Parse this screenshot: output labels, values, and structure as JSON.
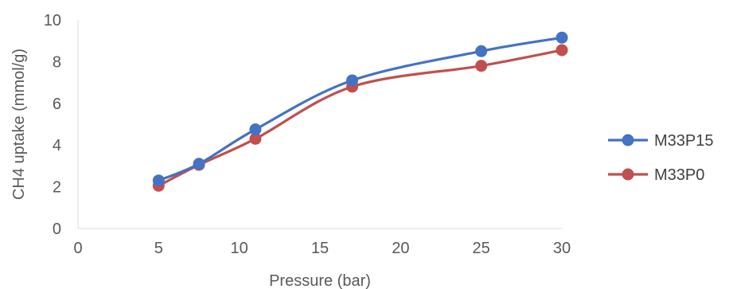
{
  "chart_data": {
    "type": "line",
    "title": "",
    "xlabel": "Pressure (bar)",
    "ylabel": "CH4 uptake (mmol/g)",
    "xlim": [
      0,
      30
    ],
    "ylim": [
      0,
      10
    ],
    "xticks": [
      0,
      5,
      10,
      15,
      20,
      25,
      30
    ],
    "yticks": [
      0,
      2,
      4,
      6,
      8,
      10
    ],
    "grid": false,
    "smooth": true,
    "legend_position": "right",
    "series": [
      {
        "name": "M33P15",
        "color": "#4472C4",
        "x": [
          5,
          7.5,
          11,
          17,
          25,
          30
        ],
        "y": [
          2.3,
          3.1,
          4.75,
          7.1,
          8.5,
          9.15
        ]
      },
      {
        "name": "M33P0",
        "color": "#C0504D",
        "x": [
          5,
          7.5,
          11,
          17,
          25,
          30
        ],
        "y": [
          2.05,
          3.05,
          4.3,
          6.8,
          7.8,
          8.55
        ]
      }
    ]
  }
}
